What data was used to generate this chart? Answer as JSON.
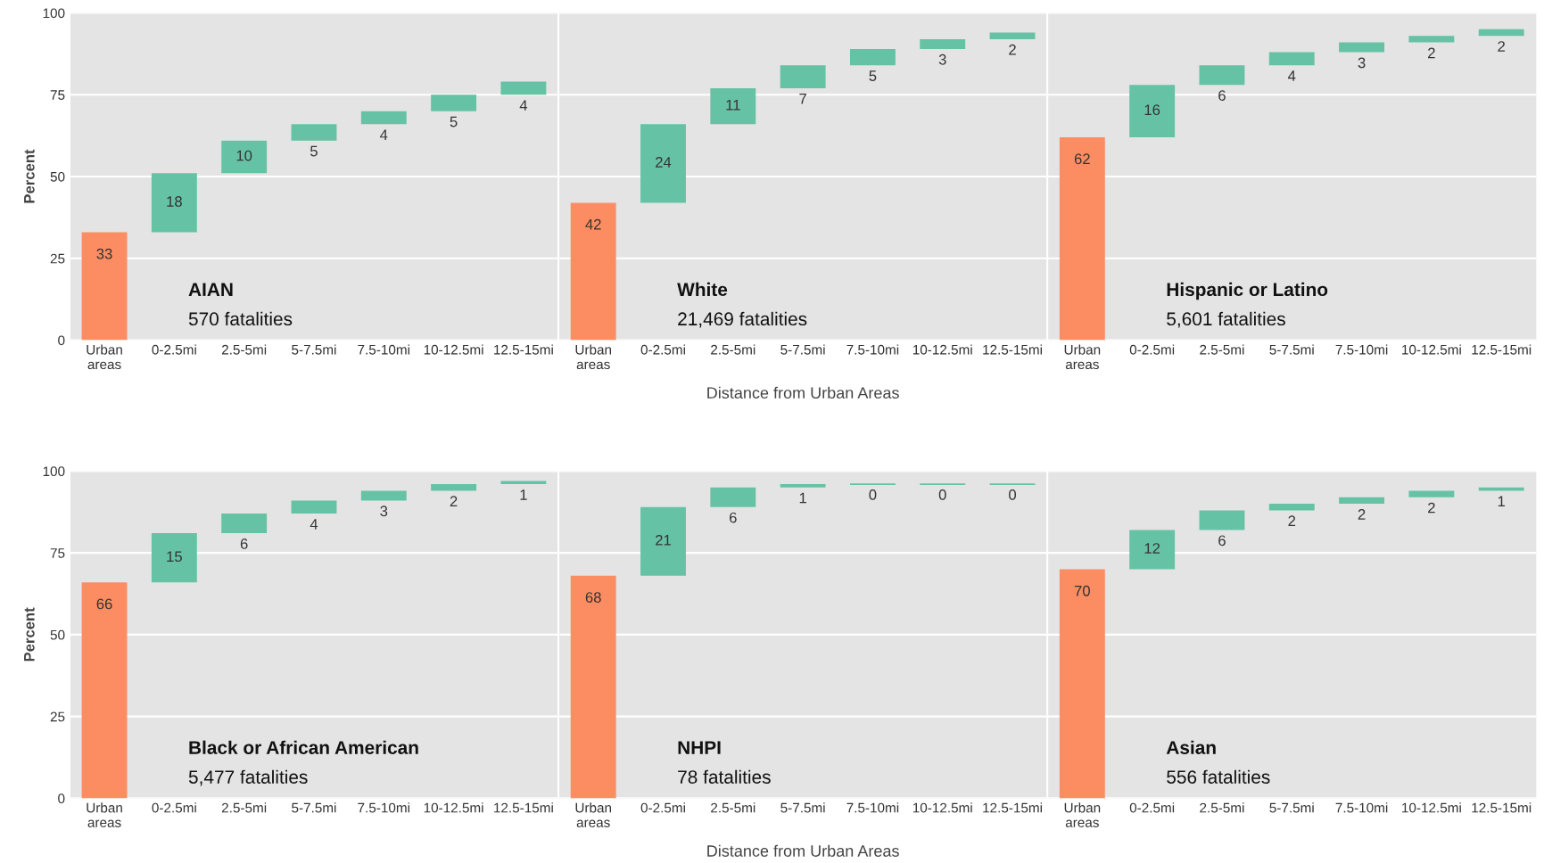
{
  "chart_data": [
    {
      "type": "bar",
      "categories": [
        "Urban\nareas",
        "0-2.5mi",
        "2.5-5mi",
        "5-7.5mi",
        "7.5-10mi",
        "10-12.5mi",
        "12.5-15mi"
      ],
      "values": [
        33,
        18,
        10,
        5,
        4,
        5,
        4
      ],
      "base": [
        0,
        33,
        51,
        61,
        66,
        70,
        75
      ],
      "colors": [
        "#fc8d62",
        "#66c2a5",
        "#66c2a5",
        "#66c2a5",
        "#66c2a5",
        "#66c2a5",
        "#66c2a5"
      ],
      "ylabel": "Percent",
      "ylim": [
        0,
        100
      ],
      "yticks": [
        0,
        25,
        50,
        75,
        100
      ],
      "grid": "y",
      "data_labels": true,
      "annotations": [
        "AIAN",
        "570 fatalities"
      ]
    },
    {
      "type": "bar",
      "categories": [
        "Urban\nareas",
        "0-2.5mi",
        "2.5-5mi",
        "5-7.5mi",
        "7.5-10mi",
        "10-12.5mi",
        "12.5-15mi"
      ],
      "values": [
        42,
        24,
        11,
        7,
        5,
        3,
        2
      ],
      "base": [
        0,
        42,
        66,
        77,
        84,
        89,
        92
      ],
      "colors": [
        "#fc8d62",
        "#66c2a5",
        "#66c2a5",
        "#66c2a5",
        "#66c2a5",
        "#66c2a5",
        "#66c2a5"
      ],
      "xlabel": "Distance from Urban Areas",
      "ylim": [
        0,
        100
      ],
      "yticks": [
        0,
        25,
        50,
        75,
        100
      ],
      "grid": "y",
      "tick_labels": "x",
      "data_labels": true,
      "annotations": [
        "White",
        "21,469 fatalities"
      ]
    },
    {
      "type": "bar",
      "categories": [
        "Urban\nareas",
        "0-2.5mi",
        "2.5-5mi",
        "5-7.5mi",
        "7.5-10mi",
        "10-12.5mi",
        "12.5-15mi"
      ],
      "values": [
        62,
        16,
        6,
        4,
        3,
        2,
        2
      ],
      "base": [
        0,
        62,
        78,
        84,
        88,
        91,
        93
      ],
      "colors": [
        "#fc8d62",
        "#66c2a5",
        "#66c2a5",
        "#66c2a5",
        "#66c2a5",
        "#66c2a5",
        "#66c2a5"
      ],
      "ylim": [
        0,
        100
      ],
      "yticks": [
        0,
        25,
        50,
        75,
        100
      ],
      "grid": "y",
      "tick_labels": "x",
      "data_labels": true,
      "annotations": [
        "Hispanic or Latino",
        "5,601 fatalities"
      ]
    },
    {
      "type": "bar",
      "categories": [
        "Urban\nareas",
        "0-2.5mi",
        "2.5-5mi",
        "5-7.5mi",
        "7.5-10mi",
        "10-12.5mi",
        "12.5-15mi"
      ],
      "values": [
        66,
        15,
        6,
        4,
        3,
        2,
        1
      ],
      "base": [
        0,
        66,
        81,
        87,
        91,
        94,
        96
      ],
      "colors": [
        "#fc8d62",
        "#66c2a5",
        "#66c2a5",
        "#66c2a5",
        "#66c2a5",
        "#66c2a5",
        "#66c2a5"
      ],
      "ylabel": "Percent",
      "ylim": [
        0,
        100
      ],
      "yticks": [
        0,
        25,
        50,
        75,
        100
      ],
      "grid": "y",
      "data_labels": true,
      "annotations": [
        "Black or African American",
        "5,477 fatalities"
      ]
    },
    {
      "type": "bar",
      "categories": [
        "Urban\nareas",
        "0-2.5mi",
        "2.5-5mi",
        "5-7.5mi",
        "7.5-10mi",
        "10-12.5mi",
        "12.5-15mi"
      ],
      "values": [
        68,
        21,
        6,
        1,
        0,
        0,
        0
      ],
      "base": [
        0,
        68,
        89,
        95,
        96,
        96,
        96
      ],
      "colors": [
        "#fc8d62",
        "#66c2a5",
        "#66c2a5",
        "#66c2a5",
        "#66c2a5",
        "#66c2a5",
        "#66c2a5"
      ],
      "xlabel": "Distance from Urban Areas",
      "ylim": [
        0,
        100
      ],
      "yticks": [
        0,
        25,
        50,
        75,
        100
      ],
      "grid": "y",
      "tick_labels": "x",
      "data_labels": true,
      "annotations": [
        "NHPI",
        "78 fatalities"
      ]
    },
    {
      "type": "bar",
      "categories": [
        "Urban\nareas",
        "0-2.5mi",
        "2.5-5mi",
        "5-7.5mi",
        "7.5-10mi",
        "10-12.5mi",
        "12.5-15mi"
      ],
      "values": [
        70,
        12,
        6,
        2,
        2,
        2,
        1
      ],
      "base": [
        0,
        70,
        82,
        88,
        90,
        92,
        94
      ],
      "colors": [
        "#fc8d62",
        "#66c2a5",
        "#66c2a5",
        "#66c2a5",
        "#66c2a5",
        "#66c2a5",
        "#66c2a5"
      ],
      "ylim": [
        0,
        100
      ],
      "yticks": [
        0,
        25,
        50,
        75,
        100
      ],
      "grid": "y",
      "tick_labels": "x",
      "data_labels": true,
      "annotations": [
        "Asian",
        "556 fatalities"
      ]
    }
  ]
}
